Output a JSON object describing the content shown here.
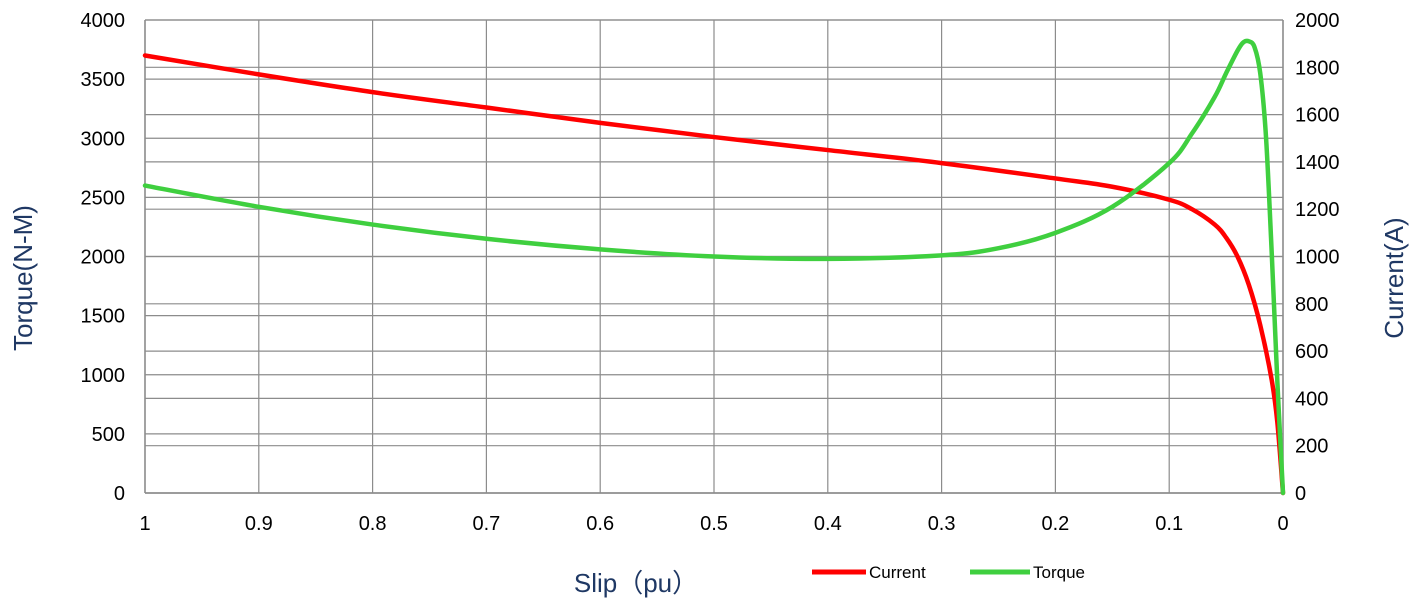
{
  "chart_data": {
    "type": "line",
    "title": "",
    "xlabel": "Slip（pu）",
    "ylabel": "Torque(N-M)",
    "y2label": "Current(A)",
    "xlim": [
      1,
      0
    ],
    "ylim": [
      0,
      4000
    ],
    "y2lim": [
      0,
      2000
    ],
    "x_ticks": [
      "1",
      "0.9",
      "0.8",
      "0.7",
      "0.6",
      "0.5",
      "0.4",
      "0.3",
      "0.2",
      "0.1",
      "0"
    ],
    "y_ticks": [
      "0",
      "500",
      "1000",
      "1500",
      "2000",
      "2500",
      "3000",
      "3500",
      "4000"
    ],
    "y2_ticks": [
      "0",
      "200",
      "400",
      "600",
      "800",
      "1000",
      "1200",
      "1400",
      "1600",
      "1800",
      "2000"
    ],
    "grid": true,
    "legend_position": "bottom-right",
    "colors": {
      "axis_title": "#1f3864",
      "grid": "#8c8c8c",
      "current": "#ff0000",
      "torque": "#3fcf3f"
    },
    "series": [
      {
        "name": "Current",
        "axis": "right",
        "color": "#ff0000",
        "x": [
          1,
          0.9,
          0.8,
          0.7,
          0.6,
          0.5,
          0.4,
          0.3,
          0.2,
          0.15,
          0.1,
          0.08,
          0.06,
          0.05,
          0.04,
          0.03,
          0.02,
          0.01,
          0.005,
          0
        ],
        "values": [
          1850,
          1770,
          1695,
          1630,
          1565,
          1505,
          1450,
          1395,
          1330,
          1295,
          1240,
          1200,
          1135,
          1080,
          1000,
          880,
          710,
          480,
          300,
          0
        ]
      },
      {
        "name": "Torque",
        "axis": "left",
        "color": "#3fcf3f",
        "x": [
          1,
          0.9,
          0.8,
          0.7,
          0.6,
          0.5,
          0.4,
          0.3,
          0.25,
          0.2,
          0.15,
          0.1,
          0.08,
          0.06,
          0.05,
          0.04,
          0.035,
          0.03,
          0.025,
          0.02,
          0.015,
          0.01,
          0.005,
          0
        ],
        "values": [
          2600,
          2420,
          2270,
          2150,
          2060,
          2000,
          1980,
          2010,
          2070,
          2200,
          2420,
          2790,
          3040,
          3350,
          3550,
          3740,
          3810,
          3820,
          3770,
          3550,
          3020,
          2050,
          950,
          0
        ]
      }
    ]
  }
}
